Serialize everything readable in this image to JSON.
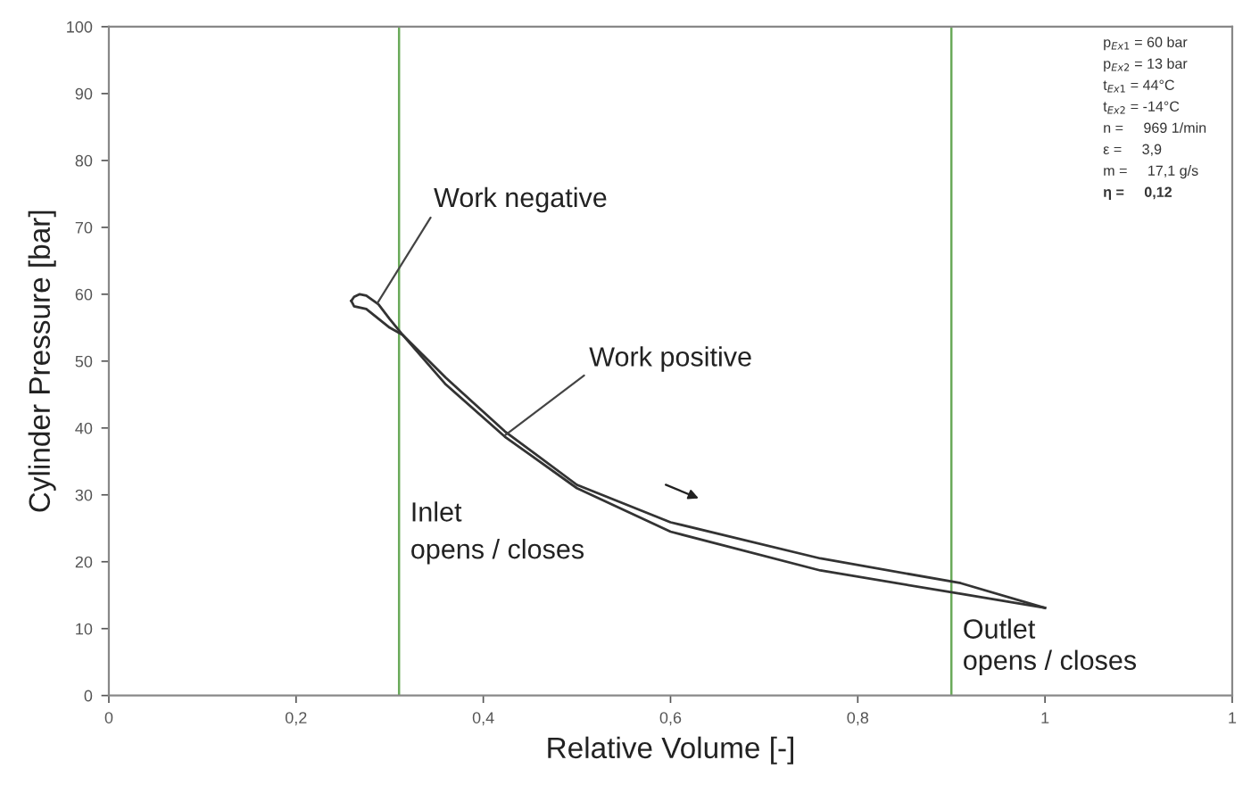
{
  "chart_data": {
    "type": "line",
    "xlabel": "Relative Volume [-]",
    "ylabel": "Cylinder Pressure [bar]",
    "series": [
      {
        "color": "#333333",
        "x": [
          0.259,
          0.262,
          0.268,
          0.275,
          0.288,
          0.3,
          0.314,
          0.36,
          0.423,
          0.5,
          0.6,
          0.76,
          0.91,
          1.0
        ],
        "values": [
          59.0,
          59.6,
          60.0,
          59.8,
          58.5,
          56.3,
          53.9,
          47.5,
          39.5,
          31.5,
          25.9,
          20.5,
          16.8,
          13.1
        ]
      },
      {
        "color": "#333333",
        "x": [
          0.259,
          0.262,
          0.275,
          0.3,
          0.314,
          0.36,
          0.423,
          0.5,
          0.6,
          0.76,
          0.91,
          1.0
        ],
        "values": [
          59.0,
          58.2,
          57.8,
          55.0,
          53.9,
          46.5,
          38.7,
          31.0,
          24.5,
          18.7,
          15.2,
          13.1
        ]
      }
    ],
    "xlim": [
      0,
      1.2
    ],
    "ylim": [
      0,
      100
    ],
    "xticks": [
      0,
      {
        "value": 0.2,
        "label": "0,2"
      },
      {
        "value": 0.4,
        "label": "0,4"
      },
      {
        "value": 0.6,
        "label": "0,6"
      },
      {
        "value": 0.8,
        "label": "0,8"
      },
      1,
      {
        "value": 1.2,
        "label": "1"
      }
    ],
    "yticks": [
      0,
      10,
      20,
      30,
      40,
      50,
      60,
      70,
      80,
      90,
      100
    ],
    "grid": false,
    "marker": "none",
    "line_style": "solid",
    "ref_lines": [
      {
        "axis": "x",
        "value": 0.31,
        "label": "Inlet\nopens / closes",
        "color": "#6aaa5a"
      },
      {
        "axis": "x",
        "value": 0.9,
        "label": "Outlet\nopens / closes",
        "color": "#6aaa5a"
      }
    ],
    "annotations": [
      {
        "text": "Work negative",
        "x": 0.287,
        "y": 58.7
      },
      {
        "text": "Work positive",
        "x": 0.423,
        "y": 38.9
      },
      "p$_{Ex1}$ = 60 bar",
      "p$_{Ex2}$ = 13 bar",
      "t$_{Ex1}$ = 44°C",
      "t$_{Ex2}$ = -14°C",
      "n =     969 1/min",
      "ε =     3,9",
      "m =     17,1 g/s",
      "η =     0,12"
    ]
  }
}
